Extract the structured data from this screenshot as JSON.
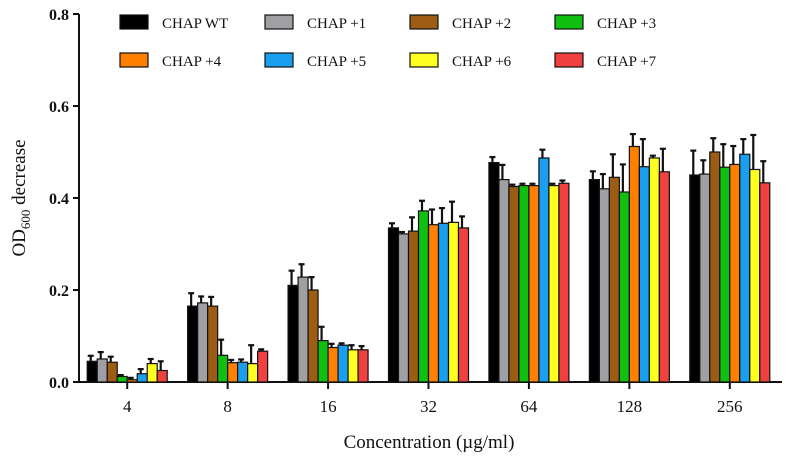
{
  "chart_data": {
    "type": "bar",
    "xlabel": "Concentration (µg/ml)",
    "ylabel_main": "OD",
    "ylabel_sub": "600",
    "ylabel_rest": " decrease",
    "ylim": [
      0,
      0.8
    ],
    "yticks": [
      "0.0",
      "0.2",
      "0.4",
      "0.6",
      "0.8"
    ],
    "categories": [
      "4",
      "8",
      "16",
      "32",
      "64",
      "128",
      "256"
    ],
    "legend_position": "top",
    "grid": false,
    "series": [
      {
        "name": "CHAP WT",
        "color": "#000000",
        "values": [
          0.045,
          0.165,
          0.21,
          0.335,
          0.477,
          0.44,
          0.45
        ],
        "errors": [
          0.012,
          0.028,
          0.032,
          0.01,
          0.012,
          0.018,
          0.053
        ]
      },
      {
        "name": "CHAP +1",
        "color": "#a0a0a4",
        "values": [
          0.05,
          0.172,
          0.228,
          0.322,
          0.44,
          0.42,
          0.452
        ],
        "errors": [
          0.015,
          0.014,
          0.028,
          0.004,
          0.032,
          0.032,
          0.03
        ]
      },
      {
        "name": "CHAP +2",
        "color": "#9c5c13",
        "values": [
          0.043,
          0.165,
          0.2,
          0.328,
          0.425,
          0.445,
          0.5
        ],
        "errors": [
          0.012,
          0.02,
          0.028,
          0.03,
          0.004,
          0.05,
          0.03
        ]
      },
      {
        "name": "CHAP +3",
        "color": "#10c010",
        "values": [
          0.012,
          0.058,
          0.09,
          0.372,
          0.427,
          0.413,
          0.467
        ],
        "errors": [
          0.003,
          0.034,
          0.03,
          0.022,
          0.004,
          0.06,
          0.05
        ]
      },
      {
        "name": "CHAP +4",
        "color": "#ff7f00",
        "values": [
          0.005,
          0.042,
          0.075,
          0.342,
          0.427,
          0.512,
          0.473
        ],
        "errors": [
          0.004,
          0.006,
          0.008,
          0.033,
          0.004,
          0.027,
          0.04
        ]
      },
      {
        "name": "CHAP +5",
        "color": "#1a9ff0",
        "values": [
          0.018,
          0.043,
          0.08,
          0.345,
          0.487,
          0.468,
          0.495
        ],
        "errors": [
          0.01,
          0.006,
          0.004,
          0.033,
          0.018,
          0.06,
          0.033
        ]
      },
      {
        "name": "CHAP +6",
        "color": "#ffff20",
        "values": [
          0.04,
          0.04,
          0.07,
          0.347,
          0.427,
          0.487,
          0.462
        ],
        "errors": [
          0.01,
          0.04,
          0.01,
          0.045,
          0.004,
          0.005,
          0.075
        ]
      },
      {
        "name": "CHAP +7",
        "color": "#f04040",
        "values": [
          0.025,
          0.067,
          0.07,
          0.335,
          0.432,
          0.457,
          0.433
        ],
        "errors": [
          0.02,
          0.004,
          0.008,
          0.025,
          0.006,
          0.05,
          0.047
        ]
      }
    ]
  }
}
